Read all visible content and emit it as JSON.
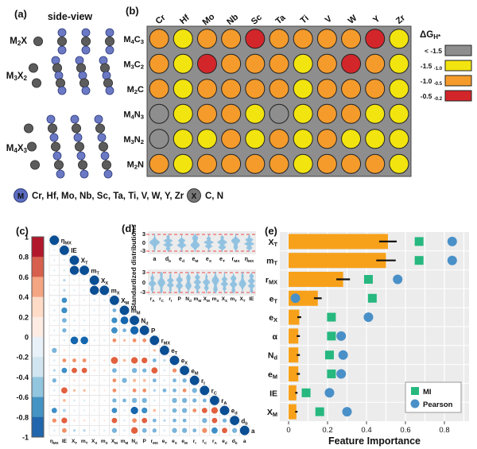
{
  "panel_a": {
    "label": "(a)",
    "title": "side-view",
    "structures": [
      {
        "name": "M~2~X",
        "layers": 3
      },
      {
        "name": "M~3~X~2~",
        "layers": 5
      },
      {
        "name": "M~4~X~3~",
        "layers": 7
      }
    ],
    "legend": [
      {
        "symbol": "M",
        "elements": "Cr, Hf, Mo, Nb, Sc, Ta, Ti, V, W, Y, Zr"
      },
      {
        "symbol": "X",
        "elements": "C, N"
      }
    ]
  },
  "panel_b": {
    "label": "(b)"
  },
  "panel_c": {
    "label": "(c)"
  },
  "panel_d": {
    "label": "(d)"
  },
  "panel_e": {
    "label": "(e)"
  },
  "colors": {
    "heatmap": {
      "g": "#8e8e8e",
      "y": "#f2e40e",
      "o": "#f59b2b",
      "r": "#d3262b"
    },
    "grid_bg": "#8e8e8e",
    "panel_bg": "#ececec",
    "bar_orange": "#f7a11a",
    "mi_green": "#26b87f",
    "pearson_blue": "#4a90c8",
    "violin_blue": "#8ec1e0",
    "dashed_red": "#ef6a6a",
    "atom_m": "#6b79c5",
    "atom_x": "#5c5c5c"
  },
  "chart_data": [
    {
      "panel": "b",
      "type": "heatmap",
      "columns": [
        "Cr",
        "Hf",
        "Mo",
        "Nb",
        "Sc",
        "Ta",
        "Ti",
        "V",
        "W",
        "Y",
        "Zr"
      ],
      "rows": [
        "M~4~C~3~",
        "M~3~C~2~",
        "M~2~C",
        "M~4~N~3~",
        "M~3~N~2~",
        "M~2~N"
      ],
      "values": [
        [
          "o",
          "y",
          "o",
          "o",
          "r",
          "o",
          "o",
          "o",
          "o",
          "r",
          "y"
        ],
        [
          "o",
          "y",
          "r",
          "o",
          "o",
          "o",
          "y",
          "o",
          "r",
          "o",
          "y"
        ],
        [
          "o",
          "y",
          "o",
          "o",
          "o",
          "o",
          "y",
          "o",
          "o",
          "o",
          "y"
        ],
        [
          "g",
          "y",
          "o",
          "o",
          "y",
          "g",
          "y",
          "o",
          "o",
          "y",
          "y"
        ],
        [
          "g",
          "y",
          "y",
          "o",
          "y",
          "o",
          "y",
          "o",
          "y",
          "y",
          "y"
        ],
        [
          "o",
          "y",
          "o",
          "o",
          "o",
          "o",
          "y",
          "o",
          "o",
          "o",
          "y"
        ]
      ],
      "legend": {
        "title": "ΔG~H*~",
        "items": [
          {
            "label": "< -1.5",
            "key": "g"
          },
          {
            "label": "-1.5 ~ -1.0",
            "key": "y"
          },
          {
            "label": "-1.0 ~ -0.5",
            "key": "o"
          },
          {
            "label": "-0.5 ~ -0.2",
            "key": "r"
          }
        ]
      }
    },
    {
      "panel": "c",
      "type": "correlation-matrix",
      "labels": [
        "η~MX~",
        "IE",
        "X~T~",
        "m~T~",
        "X~X~",
        "m~X~",
        "X~M~",
        "m~M~",
        "N~d~",
        "P",
        "r~MX~",
        "e~T~",
        "e~X~",
        "e~M~",
        "r~I~",
        "r~C~",
        "r~A~",
        "e~d~",
        "d~b~",
        "a"
      ],
      "colorbar_ticks": [
        "1",
        "0.8",
        "0.6",
        "0.4",
        "0.2",
        "0",
        "-0.2",
        "-0.4",
        "-0.6",
        "-0.8",
        "-1"
      ],
      "values": [
        [
          1
        ],
        [
          0.05,
          1
        ],
        [
          0.05,
          0.1,
          1
        ],
        [
          0.05,
          0.12,
          0.95,
          1
        ],
        [
          0.03,
          0.15,
          0.05,
          0.05,
          1
        ],
        [
          0.03,
          0.15,
          0.05,
          0.05,
          0.95,
          1
        ],
        [
          0.05,
          0.5,
          0.03,
          0.03,
          0.1,
          0.1,
          1
        ],
        [
          0.1,
          0.55,
          0.03,
          0.03,
          0.05,
          0.05,
          0.3,
          1
        ],
        [
          0.05,
          0.4,
          0.1,
          0.1,
          0.03,
          0.03,
          0.55,
          0.8,
          1
        ],
        [
          0.05,
          0.35,
          0.1,
          0.1,
          0.03,
          0.03,
          0.6,
          0.3,
          0.85,
          1
        ],
        [
          0.03,
          0.1,
          0.78,
          0.78,
          0.08,
          0.08,
          -0.3,
          -0.15,
          -0.3,
          -0.3,
          1
        ],
        [
          0.45,
          -0.05,
          0.08,
          0.08,
          0.03,
          0.03,
          0.08,
          0.05,
          0.1,
          0.1,
          -0.15,
          1
        ],
        [
          0.1,
          -0.3,
          -0.3,
          -0.3,
          -0.08,
          -0.08,
          -0.7,
          -0.2,
          -0.65,
          -0.55,
          0.3,
          0.15,
          1
        ],
        [
          0.15,
          0.5,
          -0.5,
          -0.5,
          -0.08,
          -0.08,
          0.4,
          0.1,
          0.45,
          0.35,
          -0.6,
          0.1,
          -0.35,
          1
        ],
        [
          0.35,
          0.1,
          -0.1,
          -0.1,
          0.03,
          0.03,
          -0.3,
          0.45,
          -0.25,
          -0.2,
          0.3,
          0.1,
          0.3,
          0.35,
          1
        ],
        [
          0.1,
          -0.6,
          -0.15,
          -0.15,
          -0.03,
          -0.03,
          -0.3,
          0.1,
          -0.3,
          -0.3,
          0.2,
          0.3,
          0.3,
          -0.3,
          0.45,
          1
        ],
        [
          0.1,
          -0.2,
          0.1,
          0.1,
          0.03,
          0.03,
          0.35,
          0.3,
          0.45,
          0.45,
          0.1,
          0.1,
          0.45,
          0.45,
          0.35,
          0.3,
          1
        ],
        [
          0.5,
          0.25,
          0.05,
          0.05,
          0.03,
          0.03,
          0.5,
          0.1,
          0.75,
          0.55,
          -0.2,
          0.15,
          0.4,
          0.45,
          -0.3,
          -0.5,
          -0.65,
          1
        ],
        [
          -0.35,
          -0.55,
          -0.1,
          -0.1,
          -0.03,
          -0.03,
          -0.5,
          0.1,
          -0.4,
          -0.5,
          0.3,
          0.15,
          0.3,
          0.3,
          0.1,
          0.45,
          -0.5,
          0.35,
          1
        ],
        [
          0.1,
          -0.4,
          0.15,
          0.15,
          0.08,
          0.08,
          0.45,
          0.1,
          -0.65,
          0.4,
          0.35,
          0.1,
          0.45,
          0.45,
          0.3,
          -0.45,
          0.6,
          -0.5,
          0.45,
          1
        ]
      ]
    },
    {
      "panel": "d",
      "type": "violin",
      "ylabel": "Standardized distributions",
      "yticks": [
        "3",
        "0",
        "-3"
      ],
      "ref_lines": [
        3,
        -3
      ],
      "rows": [
        {
          "labels": [
            "a",
            "d~b~",
            "e~d~",
            "e~M~",
            "e~X~",
            "e~T~",
            "r~MX~",
            "η~MX~"
          ]
        },
        {
          "labels": [
            "r~A~",
            "r~C~",
            "r~I~",
            "P",
            "N~d~",
            "m~M~",
            "X~M~",
            "m~X~",
            "X~X~",
            "m~T~",
            "X~T~",
            "IE"
          ]
        }
      ]
    },
    {
      "panel": "e",
      "type": "bar",
      "xlabel": "Feature Importance",
      "xticks": [
        "0",
        "0.2",
        "0.4",
        "0.6",
        "0.8"
      ],
      "xlim": [
        0,
        0.92
      ],
      "categories": [
        "X~T~",
        "m~T~",
        "r~MX~",
        "e~T~",
        "e~X~",
        "α",
        "N~d~",
        "e~M~",
        "IE",
        "X~M~"
      ],
      "bar_values": [
        0.51,
        0.5,
        0.28,
        0.15,
        0.055,
        0.05,
        0.05,
        0.05,
        0.04,
        0.04
      ],
      "bar_errors": [
        0.045,
        0.05,
        0.035,
        0.02,
        0.01,
        0.008,
        0.008,
        0.008,
        0.006,
        0.006
      ],
      "series": [
        {
          "name": "MI",
          "values": [
            0.67,
            0.67,
            0.41,
            0.43,
            0.22,
            0.22,
            0.21,
            0.22,
            0.09,
            0.16
          ]
        },
        {
          "name": "Pearson",
          "values": [
            0.84,
            0.84,
            0.56,
            0.035,
            0.41,
            0.27,
            0.28,
            0.27,
            0.21,
            0.3
          ]
        }
      ],
      "legend": [
        "MI",
        "Pearson"
      ],
      "legend_position": "bottom-right"
    }
  ]
}
